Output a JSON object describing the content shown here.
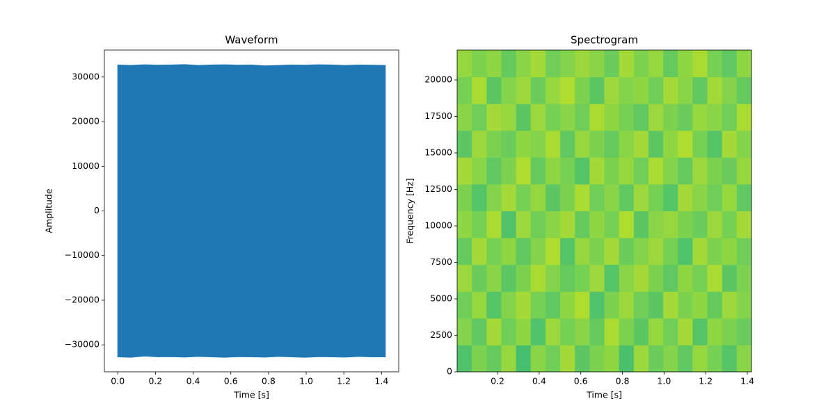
{
  "chart_data": [
    {
      "type": "waveform",
      "title": "Waveform",
      "x_label": "Time [s]",
      "y_label": "Amplitude",
      "x": [
        0,
        0.071,
        0.142,
        0.213,
        0.284,
        0.355,
        0.426,
        0.497,
        0.568,
        0.639,
        0.71,
        0.781,
        0.852,
        0.923,
        0.994,
        1.065,
        1.136,
        1.207,
        1.278,
        1.349,
        1.42
      ],
      "upper": [
        32700,
        32600,
        32750,
        32650,
        32700,
        32800,
        32600,
        32700,
        32750,
        32650,
        32700,
        32500,
        32600,
        32700,
        32650,
        32750,
        32700,
        32600,
        32700,
        32650,
        32600
      ],
      "lower": [
        -32700,
        -32800,
        -32500,
        -32700,
        -32650,
        -32750,
        -32600,
        -32700,
        -32800,
        -32650,
        -32700,
        -32750,
        -32600,
        -32700,
        -32800,
        -32650,
        -32700,
        -32750,
        -32600,
        -32700,
        -32700
      ],
      "color": "#1f77b4",
      "xlim": [
        -0.071,
        1.491
      ],
      "ylim": [
        -36045,
        36044
      ],
      "xticks": [
        {
          "value": 0,
          "label": "0.0"
        },
        0.2,
        0.4,
        0.6,
        0.8,
        {
          "value": 1,
          "label": "1.0"
        },
        1.2,
        1.4
      ],
      "yticks": [
        {
          "value": -30000,
          "label": "−30000"
        },
        {
          "value": -20000,
          "label": "−20000"
        },
        {
          "value": -10000,
          "label": "−10000"
        },
        0,
        10000,
        20000,
        30000
      ]
    },
    {
      "type": "heatmap",
      "title": "Spectrogram",
      "x_label": "Time [s]",
      "y_label": "Frequency [Hz]",
      "colormap": "viridis",
      "zlim": [
        0,
        1
      ],
      "xlim": [
        0.006,
        1.42
      ],
      "ylim": [
        0,
        22050
      ],
      "xticks": [
        0.2,
        0.4,
        0.6,
        0.8,
        {
          "value": 1,
          "label": "1.0"
        },
        1.2,
        1.4
      ],
      "yticks": [
        0,
        2500,
        5000,
        7500,
        10000,
        12500,
        15000,
        17500,
        20000
      ],
      "z": [
        [
          0.72,
          0.8,
          0.76,
          0.84,
          0.7,
          0.82,
          0.78,
          0.86,
          0.74,
          0.8,
          0.83,
          0.71,
          0.85,
          0.77,
          0.81,
          0.75,
          0.84,
          0.79,
          0.73,
          0.82
        ],
        [
          0.81,
          0.75,
          0.86,
          0.78,
          0.83,
          0.72,
          0.85,
          0.79,
          0.82,
          0.76,
          0.87,
          0.8,
          0.74,
          0.84,
          0.78,
          0.86,
          0.73,
          0.83,
          0.8,
          0.77
        ],
        [
          0.78,
          0.84,
          0.73,
          0.81,
          0.86,
          0.79,
          0.75,
          0.83,
          0.88,
          0.72,
          0.8,
          0.85,
          0.78,
          0.74,
          0.86,
          0.8,
          0.83,
          0.76,
          0.85,
          0.81
        ],
        [
          0.85,
          0.77,
          0.82,
          0.74,
          0.8,
          0.87,
          0.81,
          0.76,
          0.79,
          0.85,
          0.73,
          0.82,
          0.86,
          0.8,
          0.75,
          0.83,
          0.79,
          0.87,
          0.74,
          0.8
        ],
        [
          0.76,
          0.86,
          0.79,
          0.83,
          0.75,
          0.81,
          0.88,
          0.73,
          0.84,
          0.8,
          0.86,
          0.77,
          0.81,
          0.85,
          0.79,
          0.72,
          0.86,
          0.8,
          0.83,
          0.78
        ],
        [
          0.83,
          0.79,
          0.87,
          0.72,
          0.85,
          0.78,
          0.82,
          0.86,
          0.76,
          0.83,
          0.79,
          0.88,
          0.74,
          0.82,
          0.84,
          0.8,
          0.77,
          0.85,
          0.79,
          0.86
        ],
        [
          0.8,
          0.73,
          0.81,
          0.86,
          0.79,
          0.84,
          0.74,
          0.8,
          0.87,
          0.78,
          0.82,
          0.75,
          0.85,
          0.79,
          0.73,
          0.86,
          0.82,
          0.78,
          0.84,
          0.75
        ],
        [
          0.86,
          0.82,
          0.75,
          0.8,
          0.88,
          0.76,
          0.83,
          0.79,
          0.73,
          0.86,
          0.8,
          0.84,
          0.78,
          0.87,
          0.81,
          0.76,
          0.85,
          0.8,
          0.77,
          0.84
        ],
        [
          0.74,
          0.85,
          0.8,
          0.77,
          0.83,
          0.81,
          0.87,
          0.75,
          0.84,
          0.8,
          0.76,
          0.82,
          0.86,
          0.74,
          0.83,
          0.88,
          0.79,
          0.73,
          0.86,
          0.81
        ],
        [
          0.82,
          0.78,
          0.86,
          0.84,
          0.74,
          0.85,
          0.79,
          0.82,
          0.78,
          0.87,
          0.83,
          0.79,
          0.75,
          0.85,
          0.8,
          0.77,
          0.84,
          0.82,
          0.78,
          0.87
        ],
        [
          0.79,
          0.87,
          0.74,
          0.81,
          0.85,
          0.77,
          0.84,
          0.88,
          0.8,
          0.74,
          0.85,
          0.81,
          0.83,
          0.78,
          0.86,
          0.82,
          0.75,
          0.86,
          0.81,
          0.76
        ],
        [
          0.84,
          0.8,
          0.83,
          0.76,
          0.82,
          0.86,
          0.78,
          0.81,
          0.85,
          0.82,
          0.77,
          0.86,
          0.8,
          0.84,
          0.76,
          0.83,
          0.87,
          0.79,
          0.75,
          0.83
        ]
      ]
    }
  ]
}
